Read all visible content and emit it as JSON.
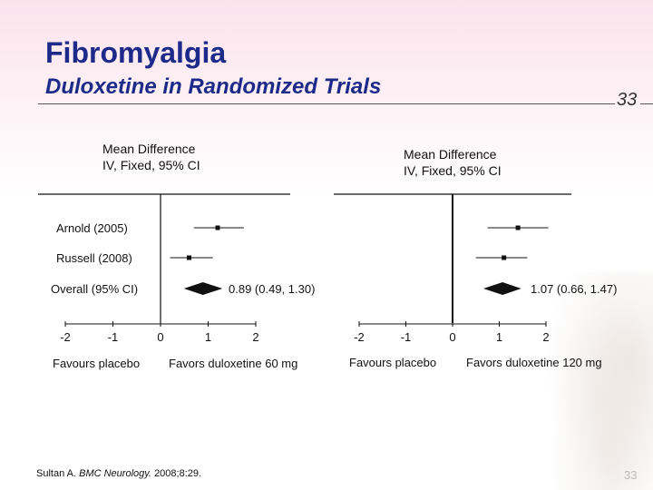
{
  "title": "Fibromyalgia",
  "subtitle": "Duloxetine in Randomized Trials",
  "slide_number": "33",
  "citation": {
    "author": "Sultan A.",
    "journal": "BMC Neurology.",
    "details": "2008;8:29."
  },
  "colors": {
    "title": "#1e2a8a",
    "marks": "#111111"
  },
  "chart_data": [
    {
      "type": "forest",
      "header_line1": "Mean Difference",
      "header_line2": "IV, Fixed, 95% CI",
      "studies": [
        {
          "label": "Arnold (2005)",
          "estimate": 1.2,
          "ci": [
            0.7,
            1.75
          ]
        },
        {
          "label": "Russell (2008)",
          "estimate": 0.6,
          "ci": [
            0.2,
            1.1
          ]
        }
      ],
      "overall": {
        "label": "Overall (95% CI)",
        "estimate": 0.89,
        "ci": [
          0.49,
          1.3
        ],
        "text": "0.89 (0.49, 1.30)"
      },
      "xlim": [
        -2,
        2
      ],
      "ticks": [
        "-2",
        "-1",
        "0",
        "1",
        "2"
      ],
      "tick_values": [
        -2,
        -1,
        0,
        1,
        2
      ],
      "favours_left": "Favours placebo",
      "favours_right": "Favors duloxetine 60 mg"
    },
    {
      "type": "forest",
      "header_line1": "Mean Difference",
      "header_line2": "IV, Fixed, 95% CI",
      "studies": [
        {
          "label": "Arnold (2005)",
          "estimate": 1.4,
          "ci": [
            0.75,
            2.05
          ]
        },
        {
          "label": "Russell (2008)",
          "estimate": 1.1,
          "ci": [
            0.5,
            1.6
          ]
        }
      ],
      "overall": {
        "label": "Overall (95% CI)",
        "estimate": 1.07,
        "ci": [
          0.66,
          1.47
        ],
        "text": "1.07 (0.66, 1.47)"
      },
      "xlim": [
        -2,
        2
      ],
      "ticks": [
        "-2",
        "-1",
        "0",
        "1",
        "2"
      ],
      "tick_values": [
        -2,
        -1,
        0,
        1,
        2
      ],
      "favours_left": "Favours placebo",
      "favours_right": "Favors duloxetine 120 mg"
    }
  ]
}
